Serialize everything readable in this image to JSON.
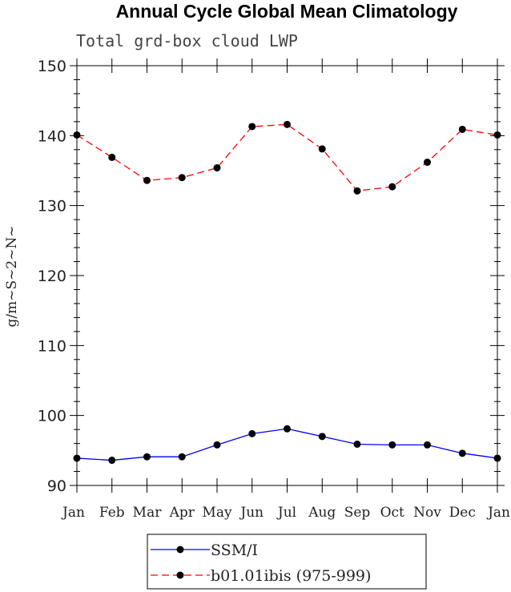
{
  "chart_data": {
    "type": "line",
    "title": "Annual Cycle Global Mean Climatology",
    "subtitle": "Total grd-box cloud LWP",
    "xlabel": "",
    "ylabel": "g/m~S~2~N~",
    "categories": [
      "Jan",
      "Feb",
      "Mar",
      "Apr",
      "May",
      "Jun",
      "Jul",
      "Aug",
      "Sep",
      "Oct",
      "Nov",
      "Dec",
      "Jan"
    ],
    "ylim": [
      90,
      150
    ],
    "yticks": [
      90,
      100,
      110,
      120,
      130,
      140,
      150
    ],
    "ytick_labels": [
      "90",
      "100",
      "110",
      "120",
      "130",
      "140",
      "150"
    ],
    "series": [
      {
        "name": "SSM/I",
        "color": "#0000ff",
        "dash": "solid",
        "values": [
          93.9,
          93.6,
          94.1,
          94.1,
          95.8,
          97.4,
          98.1,
          97.0,
          95.9,
          95.8,
          95.8,
          94.6,
          93.9
        ]
      },
      {
        "name": "b01.01ibis (975-999)",
        "color": "#ff0000",
        "dash": "dashed",
        "values": [
          140.1,
          136.9,
          133.6,
          134.0,
          135.4,
          141.3,
          141.6,
          138.1,
          132.1,
          132.7,
          136.2,
          140.9,
          140.1
        ]
      }
    ],
    "grid": false,
    "legend": "bottom-center"
  }
}
